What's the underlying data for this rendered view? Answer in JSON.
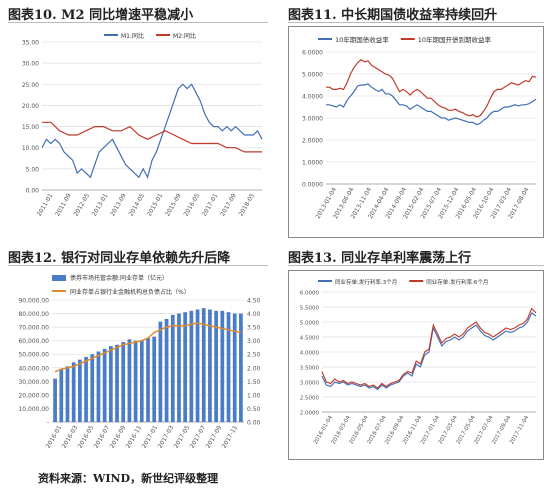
{
  "figures": [
    {
      "title": "图表10.  M2 同比增速平稳减小"
    },
    {
      "title": "图表11.  中长期国债收益率持续回升"
    },
    {
      "title": "图表12.  银行对同业存单依赖先升后降"
    },
    {
      "title": "图表13.  同业存单利率震荡上行"
    }
  ],
  "source": "资料来源：WIND，新世纪评级整理",
  "chart_data": [
    {
      "type": "line",
      "legend": "top",
      "ylim": [
        0,
        35
      ],
      "yticks": [
        "0.00",
        "5.00",
        "10.00",
        "15.00",
        "20.00",
        "25.00",
        "30.00",
        "35.00"
      ],
      "xticks": [
        "2011-01",
        "2011-09",
        "2012-05",
        "2013-01",
        "2013-09",
        "2014-05",
        "2015-01",
        "2015-09",
        "2016-05",
        "2017-01",
        "2017-09",
        "2018-05"
      ],
      "grid": true,
      "series": [
        {
          "name": "M1:同比",
          "color": "#3f6eb5",
          "x": [
            0,
            1,
            2,
            3,
            4,
            5,
            6,
            7,
            8,
            9,
            10,
            11,
            12,
            13,
            14,
            15,
            16,
            17,
            18,
            19,
            20,
            21,
            22,
            23,
            24,
            25,
            26,
            27,
            28,
            29,
            30,
            31,
            32,
            33,
            34,
            35,
            36,
            37,
            38,
            39,
            40,
            41,
            42,
            43,
            44,
            45,
            46,
            47,
            48,
            49,
            50
          ],
          "values": [
            10,
            12,
            11,
            12,
            11,
            9,
            8,
            7,
            4,
            5,
            4,
            3,
            6,
            9,
            10,
            11,
            12,
            10,
            8,
            6,
            5,
            4,
            3,
            5,
            3,
            7,
            9,
            12,
            15,
            18,
            21,
            24,
            25,
            24,
            25,
            23,
            21,
            18,
            16,
            15,
            15,
            14,
            15,
            14,
            15,
            14,
            13,
            13,
            13,
            14,
            12
          ]
        },
        {
          "name": "M2:同比",
          "color": "#c0392b",
          "x": [
            0,
            2,
            4,
            6,
            8,
            10,
            12,
            14,
            16,
            18,
            20,
            22,
            24,
            26,
            28,
            30,
            32,
            34,
            36,
            38,
            40,
            42,
            44,
            46,
            48,
            50
          ],
          "values": [
            16,
            16,
            14,
            13,
            13,
            14,
            15,
            15,
            14,
            14,
            15,
            13,
            12,
            13,
            14,
            13,
            12,
            11,
            11,
            11,
            11,
            10,
            10,
            9,
            9,
            9
          ]
        }
      ]
    },
    {
      "type": "line",
      "legend": "top",
      "ylim": [
        0,
        6
      ],
      "yticks": [
        "0.0000",
        "1.0000",
        "2.0000",
        "3.0000",
        "4.0000",
        "5.0000",
        "6.0000"
      ],
      "xticks": [
        "2013-01-04",
        "2013-06-04",
        "2013-11-04",
        "2014-04-04",
        "2014-09-04",
        "2015-02-04",
        "2015-07-04",
        "2015-12-04",
        "2016-05-04",
        "2016-10-04",
        "2017-03-04",
        "2017-08-04"
      ],
      "grid": true,
      "series": [
        {
          "name": "10年期国债收益率",
          "color": "#3f6eb5",
          "x": [
            0,
            1,
            2,
            3,
            4,
            5,
            6,
            7,
            8,
            9,
            10,
            11,
            12,
            13,
            14,
            15,
            16,
            17,
            18,
            19,
            20,
            21,
            22,
            23,
            24,
            25,
            26,
            27,
            28,
            29,
            30,
            31,
            32,
            33,
            34,
            35,
            36,
            37,
            38,
            39,
            40,
            41,
            42,
            43,
            44,
            45,
            46,
            47,
            48,
            49,
            50,
            51,
            52,
            53,
            54,
            55,
            56,
            57,
            58,
            59,
            60
          ],
          "values": [
            3.6,
            3.6,
            3.55,
            3.5,
            3.6,
            3.5,
            3.8,
            4.0,
            4.2,
            4.45,
            4.5,
            4.5,
            4.55,
            4.4,
            4.3,
            4.2,
            4.3,
            4.1,
            4.1,
            4.0,
            3.8,
            3.6,
            3.6,
            3.55,
            3.4,
            3.5,
            3.6,
            3.5,
            3.4,
            3.3,
            3.3,
            3.2,
            3.1,
            3.0,
            3.0,
            2.9,
            2.95,
            3.0,
            2.95,
            2.9,
            2.85,
            2.8,
            2.8,
            2.7,
            2.75,
            2.9,
            3.0,
            3.2,
            3.3,
            3.3,
            3.4,
            3.5,
            3.5,
            3.55,
            3.6,
            3.55,
            3.6,
            3.6,
            3.65,
            3.75,
            3.85
          ]
        },
        {
          "name": "10年期国开债到期收益率",
          "color": "#c0392b",
          "x": [
            0,
            1,
            2,
            3,
            4,
            5,
            6,
            7,
            8,
            9,
            10,
            11,
            12,
            13,
            14,
            15,
            16,
            17,
            18,
            19,
            20,
            21,
            22,
            23,
            24,
            25,
            26,
            27,
            28,
            29,
            30,
            31,
            32,
            33,
            34,
            35,
            36,
            37,
            38,
            39,
            40,
            41,
            42,
            43,
            44,
            45,
            46,
            47,
            48,
            49,
            50,
            51,
            52,
            53,
            54,
            55,
            56,
            57,
            58,
            59,
            60
          ],
          "values": [
            4.4,
            4.4,
            4.3,
            4.3,
            4.35,
            4.3,
            4.6,
            5.0,
            5.3,
            5.5,
            5.65,
            5.55,
            5.6,
            5.4,
            5.3,
            5.2,
            5.1,
            5.0,
            4.95,
            4.8,
            4.5,
            4.2,
            4.3,
            4.2,
            4.05,
            4.2,
            4.3,
            4.2,
            4.05,
            3.9,
            3.9,
            3.75,
            3.6,
            3.5,
            3.45,
            3.35,
            3.35,
            3.4,
            3.3,
            3.25,
            3.15,
            3.1,
            3.15,
            3.05,
            3.1,
            3.3,
            3.55,
            3.9,
            4.2,
            4.3,
            4.3,
            4.4,
            4.5,
            4.6,
            4.55,
            4.5,
            4.6,
            4.7,
            4.65,
            4.9,
            4.85
          ]
        }
      ]
    },
    {
      "type": "bar",
      "legend": "top",
      "ylim": [
        0,
        90000
      ],
      "y2lim": [
        0,
        4.5
      ],
      "yticks": [
        "-",
        "10,000.00",
        "20,000.00",
        "30,000.00",
        "40,000.00",
        "50,000.00",
        "60,000.00",
        "70,000.00",
        "80,000.00",
        "90,000.00"
      ],
      "y2ticks": [
        "0.00",
        "0.50",
        "1.00",
        "1.50",
        "2.00",
        "2.50",
        "3.00",
        "3.50",
        "4.00",
        "4.50"
      ],
      "xticks": [
        "2016-01",
        "2016-03",
        "2016-05",
        "2016-07",
        "2016-09",
        "2016-11",
        "2017-01",
        "2017-03",
        "2017-05",
        "2017-07",
        "2017-09",
        "2017-11"
      ],
      "grid": true,
      "series": [
        {
          "name": "债券市场托管余额:同业存单（亿元）",
          "color": "#4a7cc7",
          "axis": "left",
          "values": [
            32000,
            39000,
            41000,
            44000,
            46000,
            48000,
            50000,
            52000,
            54000,
            56000,
            57000,
            59000,
            61000,
            60000,
            60000,
            62000,
            63000,
            74000,
            76000,
            79000,
            80000,
            81000,
            82000,
            83000,
            84000,
            83000,
            82000,
            82000,
            81000,
            80000,
            80000
          ]
        },
        {
          "name": "同业存单占银行业金融机构总负债占比（%）",
          "color": "#e08a2e",
          "axis": "right",
          "values": [
            1.85,
            1.95,
            2.0,
            2.05,
            2.15,
            2.25,
            2.35,
            2.45,
            2.55,
            2.65,
            2.75,
            2.85,
            2.9,
            2.95,
            3.0,
            3.1,
            3.3,
            3.4,
            3.5,
            3.55,
            3.55,
            3.55,
            3.6,
            3.65,
            3.6,
            3.55,
            3.5,
            3.45,
            3.4,
            3.35,
            3.3
          ]
        }
      ]
    },
    {
      "type": "line",
      "legend": "top",
      "ylim": [
        2,
        6
      ],
      "yticks": [
        "2.0000",
        "2.5000",
        "3.0000",
        "3.5000",
        "4.0000",
        "4.5000",
        "5.0000",
        "5.5000",
        "6.0000"
      ],
      "xticks": [
        "2016-01-04",
        "2016-03-04",
        "2016-05-04",
        "2016-07-04",
        "2016-09-04",
        "2016-11-04",
        "2017-01-04",
        "2017-03-04",
        "2017-05-04",
        "2017-07-04",
        "2017-09-04",
        "2017-11-04"
      ],
      "grid": true,
      "series": [
        {
          "name": "同业存单:发行利率:3个月",
          "color": "#3f6eb5",
          "x": [
            0,
            1,
            2,
            3,
            4,
            5,
            6,
            7,
            8,
            9,
            10,
            11,
            12,
            13,
            14,
            15,
            16,
            17,
            18,
            19,
            20,
            21,
            22,
            23,
            24,
            25,
            26,
            27,
            28,
            29,
            30,
            31,
            32,
            33,
            34,
            35,
            36,
            37,
            38,
            39,
            40,
            41,
            42,
            43,
            44,
            45,
            46,
            47,
            48,
            49,
            50
          ],
          "values": [
            3.2,
            2.9,
            2.85,
            3.0,
            2.95,
            3.0,
            2.9,
            2.95,
            2.9,
            2.85,
            2.9,
            2.8,
            2.85,
            2.75,
            2.9,
            2.8,
            2.9,
            2.95,
            3.0,
            3.2,
            3.3,
            3.2,
            3.6,
            3.5,
            3.9,
            4.0,
            4.8,
            4.5,
            4.2,
            4.35,
            4.4,
            4.5,
            4.4,
            4.5,
            4.7,
            4.8,
            4.9,
            4.7,
            4.55,
            4.5,
            4.4,
            4.5,
            4.6,
            4.7,
            4.65,
            4.7,
            4.8,
            4.85,
            5.0,
            5.3,
            5.2
          ]
        },
        {
          "name": "同业存单:发行利率:6个月",
          "color": "#c0392b",
          "x": [
            0,
            1,
            2,
            3,
            4,
            5,
            6,
            7,
            8,
            9,
            10,
            11,
            12,
            13,
            14,
            15,
            16,
            17,
            18,
            19,
            20,
            21,
            22,
            23,
            24,
            25,
            26,
            27,
            28,
            29,
            30,
            31,
            32,
            33,
            34,
            35,
            36,
            37,
            38,
            39,
            40,
            41,
            42,
            43,
            44,
            45,
            46,
            47,
            48,
            49,
            50
          ],
          "values": [
            3.35,
            3.0,
            2.95,
            3.1,
            3.0,
            3.05,
            2.95,
            3.0,
            2.95,
            2.9,
            2.95,
            2.85,
            2.9,
            2.8,
            2.95,
            2.85,
            2.95,
            3.0,
            3.05,
            3.25,
            3.35,
            3.3,
            3.7,
            3.6,
            4.0,
            4.1,
            4.9,
            4.6,
            4.3,
            4.45,
            4.5,
            4.6,
            4.5,
            4.6,
            4.8,
            4.9,
            5.0,
            4.8,
            4.65,
            4.6,
            4.5,
            4.6,
            4.7,
            4.8,
            4.75,
            4.8,
            4.9,
            4.95,
            5.1,
            5.45,
            5.3
          ]
        }
      ]
    }
  ]
}
